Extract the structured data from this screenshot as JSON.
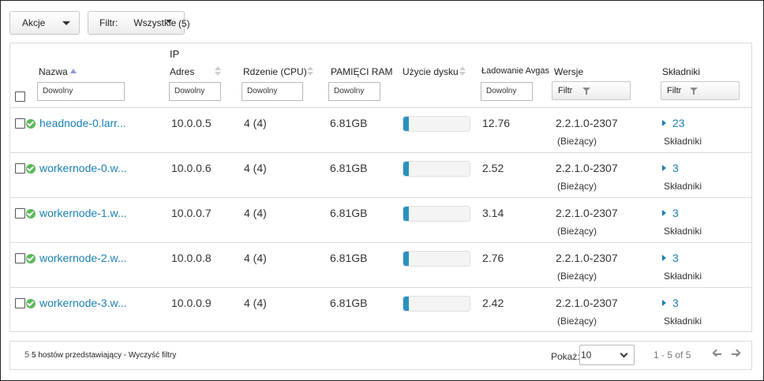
{
  "toolbar": {
    "actions_label": "Akcje",
    "filter_label": "Filtr:",
    "filter_value": "Wszystkie",
    "filter_count": "(5)"
  },
  "columns": {
    "name": "Nazwa",
    "ip_top": "IP",
    "ip": "Adres",
    "cores": "Rdzenie (CPU)",
    "ram": "PAMIĘCI RAM",
    "disk": "Użycie dysku",
    "load": "Ładowanie Avgas",
    "versions": "Wersje",
    "components": "Składniki"
  },
  "filters": {
    "name": "Dowolny",
    "ip": "Dowolny",
    "cores": "Dowolny",
    "ram": "Dowolny",
    "load": "Dowolny",
    "versions_button": "Filtr",
    "components_button": "Filtr"
  },
  "rows": [
    {
      "host": "headnode-0.larr...",
      "ip": "10.0.0.5",
      "cores": "4 (4)",
      "ram": "6.81GB",
      "disk_pct": 8,
      "load": "12.76",
      "version": "2.2.1.0-2307",
      "version_state": "(Bieżący)",
      "components_count": "23",
      "components_label": "Składniki"
    },
    {
      "host": "workernode-0.w...",
      "ip": "10.0.0.6",
      "cores": "4 (4)",
      "ram": "6.81GB",
      "disk_pct": 8,
      "load": "2.52",
      "version": "2.2.1.0-2307",
      "version_state": "(Bieżący)",
      "components_count": "3",
      "components_label": "Składniki"
    },
    {
      "host": "workernode-1.w...",
      "ip": "10.0.0.7",
      "cores": "4 (4)",
      "ram": "6.81GB",
      "disk_pct": 8,
      "load": "3.14",
      "version": "2.2.1.0-2307",
      "version_state": "(Bieżący)",
      "components_count": "3",
      "components_label": "Składniki"
    },
    {
      "host": "workernode-2.w...",
      "ip": "10.0.0.8",
      "cores": "4 (4)",
      "ram": "6.81GB",
      "disk_pct": 8,
      "load": "2.76",
      "version": "2.2.1.0-2307",
      "version_state": "(Bieżący)",
      "components_count": "3",
      "components_label": "Składniki"
    },
    {
      "host": "workernode-3.w...",
      "ip": "10.0.0.9",
      "cores": "4 (4)",
      "ram": "6.81GB",
      "disk_pct": 8,
      "load": "2.42",
      "version": "2.2.1.0-2307",
      "version_state": "(Bieżący)",
      "components_count": "3",
      "components_label": "Składniki"
    }
  ],
  "footer": {
    "count": "5",
    "summary": "5 hostów przedstawiający - Wyczyść filtry",
    "show_label": "Pokaż:",
    "page_size": "10",
    "range": "1 - 5 of 5"
  },
  "colors": {
    "link": "#1a7fb4",
    "ok": "#5cb85c",
    "disk_fill": "#2a91c0"
  }
}
